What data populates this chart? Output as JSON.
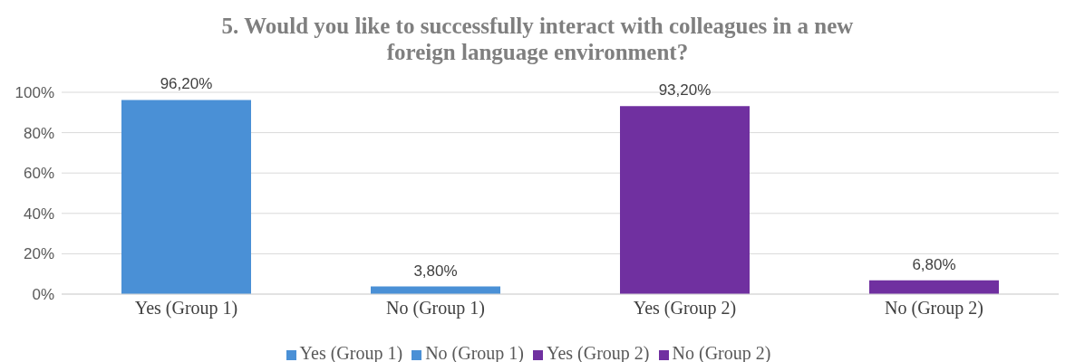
{
  "chart_data": {
    "type": "bar",
    "title": "5. Would you like to successfully interact with colleagues in a new foreign language environment?",
    "categories": [
      "Yes (Group 1)",
      "No (Group 1)",
      "Yes (Group 2)",
      "No (Group 2)"
    ],
    "series": [
      {
        "name": "Yes (Group 1)",
        "color": "#4a90d6",
        "values": [
          96.2,
          null,
          null,
          null
        ],
        "value_labels": [
          "96,20%",
          null,
          null,
          null
        ]
      },
      {
        "name": "No (Group 1)",
        "color": "#4a90d6",
        "values": [
          null,
          3.8,
          null,
          null
        ],
        "value_labels": [
          null,
          "3,80%",
          null,
          null
        ]
      },
      {
        "name": "Yes (Group 2)",
        "color": "#7030a0",
        "values": [
          null,
          null,
          93.2,
          null
        ],
        "value_labels": [
          null,
          null,
          "93,20%",
          null
        ]
      },
      {
        "name": "No (Group 2)",
        "color": "#7030a0",
        "values": [
          null,
          null,
          null,
          6.8
        ],
        "value_labels": [
          null,
          null,
          null,
          "6,80%"
        ]
      }
    ],
    "stacked": true,
    "ylim": [
      0,
      100
    ],
    "yticks": [
      {
        "value": 0,
        "label": "0%"
      },
      {
        "value": 20,
        "label": "20%"
      },
      {
        "value": 40,
        "label": "40%"
      },
      {
        "value": 60,
        "label": "60%"
      },
      {
        "value": 80,
        "label": "80%"
      },
      {
        "value": 100,
        "label": "100%"
      }
    ],
    "grid": "y",
    "legend": "bottom"
  }
}
